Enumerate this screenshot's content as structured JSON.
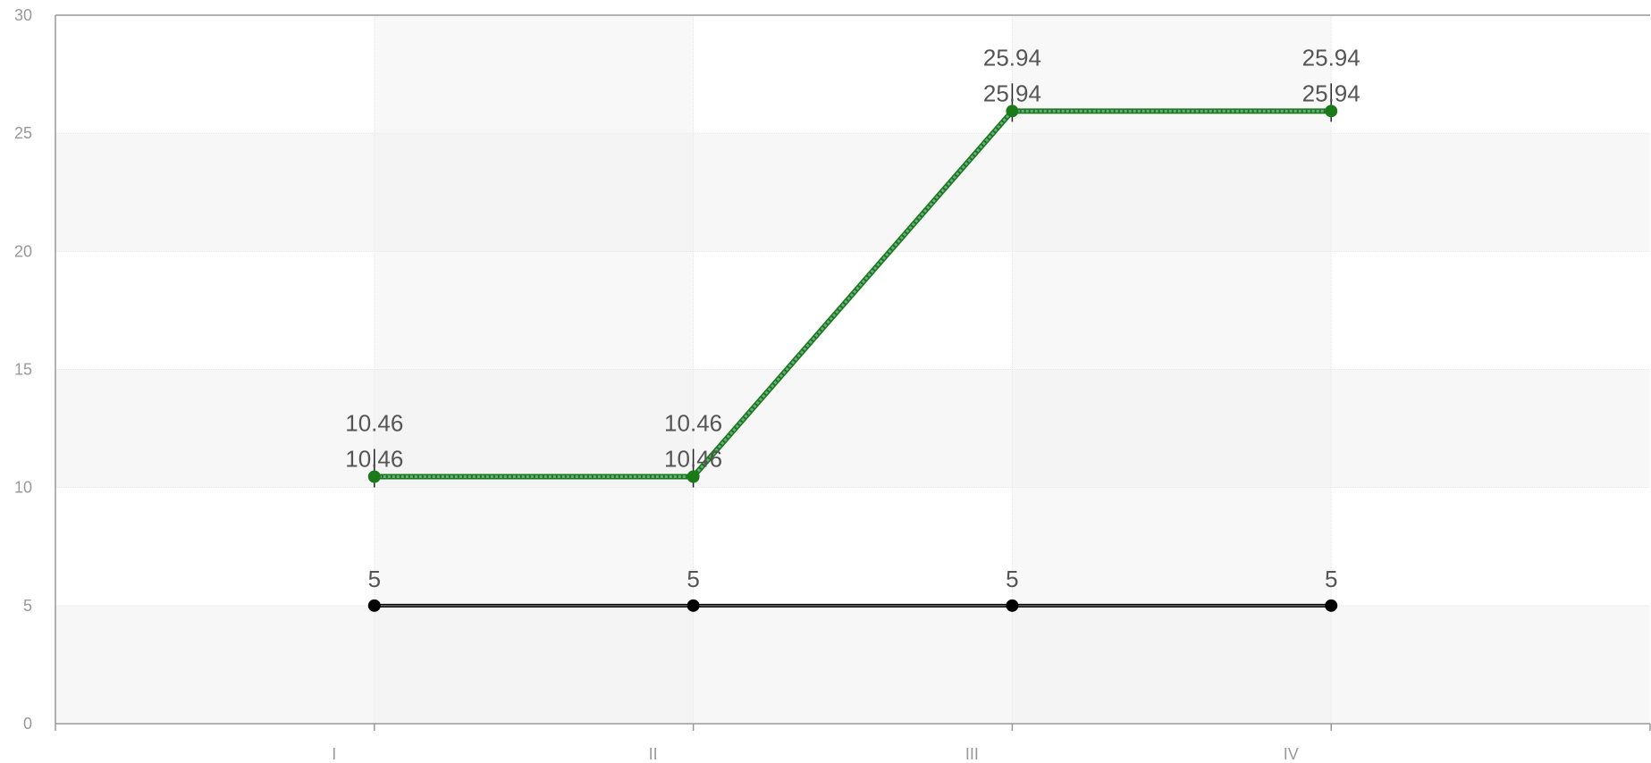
{
  "chart_data": {
    "type": "line",
    "categories": [
      "I",
      "II",
      "III",
      "IV"
    ],
    "x_positions": [
      1,
      2,
      3,
      4
    ],
    "xlim": [
      0,
      5
    ],
    "ylim": [
      0,
      30
    ],
    "yticks": [
      0,
      5,
      10,
      15,
      20,
      25,
      30
    ],
    "grid": true,
    "title": "",
    "xlabel": "",
    "ylabel": "",
    "series": [
      {
        "values": [
          5,
          5,
          5,
          5
        ],
        "color": "#000000",
        "labels": [
          "5",
          "5",
          "5",
          "5"
        ],
        "show_error_bars": false
      },
      {
        "values": [
          10.46,
          10.46,
          25.94,
          25.94
        ],
        "color": "#1a7a1a",
        "line_color": "#6aaa88",
        "labels": [
          "10.46",
          "10.46",
          "25.94",
          "25.94"
        ],
        "value_labels": [
          "10.46",
          "10.46",
          "25.94",
          "25.94"
        ],
        "show_error_bars": true
      }
    ],
    "colors": {
      "axis": "#999999",
      "grid": "#e6e6e6",
      "band_alt": "#f7f7f7",
      "column_band": "#f2f2f2",
      "label": "#555555"
    }
  }
}
